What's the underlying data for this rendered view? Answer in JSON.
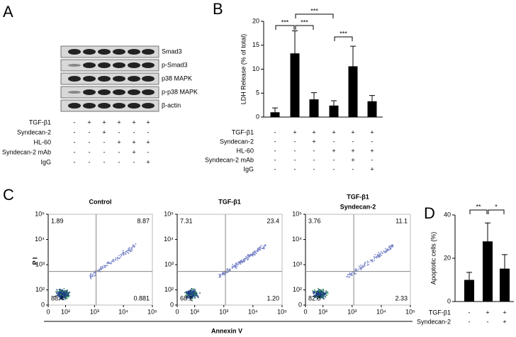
{
  "panel_labels": [
    "A",
    "B",
    "C",
    "D"
  ],
  "blot": {
    "bands": [
      "Smad3",
      "p-Smad3",
      "p38 MAPK",
      "p-p38 MAPK",
      "β-actin"
    ],
    "conditions": [
      {
        "name": "TGF-β1",
        "signs": [
          "-",
          "+",
          "+",
          "+",
          "+",
          "+"
        ]
      },
      {
        "name": "Syndecan-2",
        "signs": [
          "-",
          "-",
          "+",
          "-",
          "-",
          "-"
        ]
      },
      {
        "name": "HL-60",
        "signs": [
          "-",
          "-",
          "-",
          "+",
          "+",
          "+"
        ]
      },
      {
        "name": "Syndecan-2 mAb",
        "signs": [
          "-",
          "-",
          "-",
          "-",
          "+",
          "-"
        ]
      },
      {
        "name": "IgG",
        "signs": [
          "-",
          "-",
          "-",
          "-",
          "-",
          "+"
        ]
      }
    ]
  },
  "chart_data": [
    {
      "type": "bar",
      "ylabel": "LDH Release (% of total)",
      "categories": [
        null,
        null,
        null,
        null,
        null,
        null
      ],
      "values": [
        1.0,
        13.3,
        3.7,
        2.4,
        10.6,
        3.3
      ],
      "errors": [
        0.9,
        4.7,
        1.4,
        1.0,
        4.2,
        1.2
      ],
      "color": "#000000",
      "ylim": [
        0,
        20
      ],
      "yticks": [
        0,
        5,
        10,
        15,
        20
      ],
      "conditions": [
        {
          "name": "TGF-β1",
          "signs": [
            "-",
            "+",
            "+",
            "+",
            "+",
            "+"
          ]
        },
        {
          "name": "Syndecan-2",
          "signs": [
            "-",
            "-",
            "+",
            "-",
            "-",
            "-"
          ]
        },
        {
          "name": "HL-60",
          "signs": [
            "-",
            "-",
            "-",
            "+",
            "+",
            "+"
          ]
        },
        {
          "name": "Syndecan-2 mAb",
          "signs": [
            "-",
            "-",
            "-",
            "-",
            "+",
            "-"
          ]
        },
        {
          "name": "IgG",
          "signs": [
            "-",
            "-",
            "-",
            "-",
            "-",
            "+"
          ]
        }
      ],
      "annotations": [
        "***",
        "***",
        "***",
        "***"
      ]
    },
    {
      "type": "flow",
      "title": [
        "Control"
      ],
      "values": [
        1.89,
        8.87,
        88.4,
        0.881
      ],
      "xlabel": "Annexin V",
      "ylabel": "P I",
      "xlim": [
        0,
        100000
      ],
      "ylim": [
        0,
        100000
      ],
      "xticks": [
        0,
        {
          "value": 100,
          "label": "10²"
        },
        {
          "value": 1000,
          "label": "10³"
        },
        {
          "value": 10000,
          "label": "10⁴"
        },
        {
          "value": 100000,
          "label": "10⁵"
        }
      ],
      "yticks": [
        0,
        {
          "value": 100,
          "label": "10²"
        },
        {
          "value": 1000,
          "label": "10³"
        },
        {
          "value": 10000,
          "label": "10⁴"
        },
        {
          "value": 100000,
          "label": "10⁵"
        }
      ]
    },
    {
      "type": "flow",
      "title": [
        "TGF-β1"
      ],
      "values": [
        7.31,
        23.4,
        68.1,
        1.2
      ],
      "value_labels": [
        "7.31",
        "23.4",
        "68.1",
        "1.20"
      ],
      "xlim": [
        0,
        100000
      ],
      "ylim": [
        0,
        100000
      ],
      "xticks": [
        0,
        {
          "value": 100,
          "label": "10²"
        },
        {
          "value": 1000,
          "label": "10³"
        },
        {
          "value": 10000,
          "label": "10⁴"
        },
        {
          "value": 100000,
          "label": "10⁵"
        }
      ],
      "yticks": [
        0,
        {
          "value": 100,
          "label": "10²"
        },
        {
          "value": 1000,
          "label": "10³"
        },
        {
          "value": 10000,
          "label": "10⁴"
        },
        {
          "value": 100000,
          "label": "10⁵"
        }
      ]
    },
    {
      "type": "flow",
      "title": [
        "TGF-β1",
        "Syndecan-2"
      ],
      "values": [
        3.76,
        11.1,
        82.8,
        2.33
      ],
      "xlim": [
        0,
        100000
      ],
      "ylim": [
        0,
        100000
      ],
      "xticks": [
        0,
        {
          "value": 100,
          "label": "10²"
        },
        {
          "value": 1000,
          "label": "10³"
        },
        {
          "value": 10000,
          "label": "10⁴"
        },
        {
          "value": 100000,
          "label": "10⁵"
        }
      ],
      "yticks": [
        0,
        {
          "value": 100,
          "label": "10²"
        },
        {
          "value": 1000,
          "label": "10³"
        },
        {
          "value": 10000,
          "label": "10⁴"
        },
        {
          "value": 100000,
          "label": "10⁵"
        }
      ]
    },
    {
      "type": "bar",
      "ylabel": "Apoptotic cells (%)",
      "categories": [
        null,
        null,
        null
      ],
      "values": [
        10,
        27.8,
        15.2
      ],
      "errors": [
        3.5,
        8.5,
        6.5
      ],
      "color": "#000000",
      "ylim": [
        0,
        40
      ],
      "yticks": [
        0,
        20,
        40
      ],
      "conditions": [
        {
          "name": "TGF-β1",
          "signs": [
            "-",
            "+",
            "+"
          ]
        },
        {
          "name": "Syndecan-2",
          "signs": [
            "-",
            "-",
            "+"
          ]
        }
      ],
      "annotations": [
        "**",
        "*"
      ]
    }
  ]
}
